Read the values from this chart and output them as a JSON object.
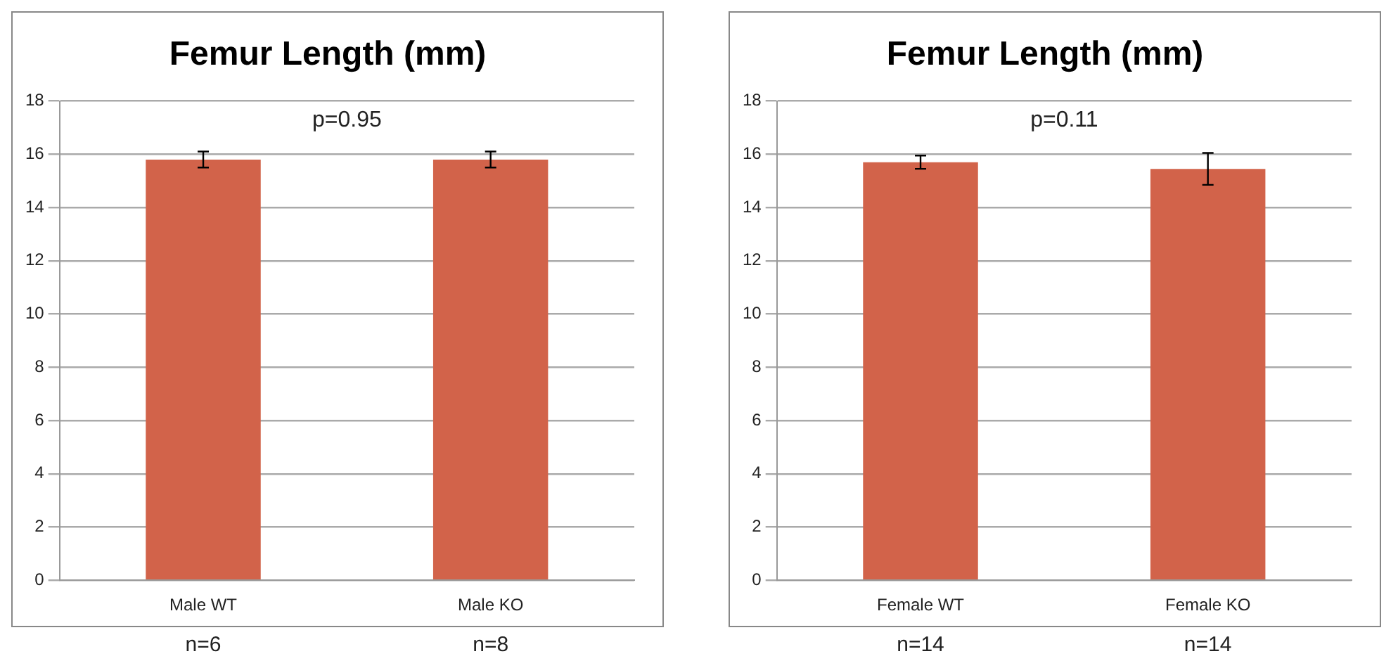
{
  "chart_data": [
    {
      "type": "bar",
      "title": "Femur Length (mm)",
      "categories": [
        "Male WT",
        "Male KO"
      ],
      "values": [
        15.8,
        15.8
      ],
      "errors": [
        0.3,
        0.3
      ],
      "color": "#d2634a",
      "ylim": [
        0,
        18
      ],
      "yticks": [
        0,
        2,
        4,
        6,
        8,
        10,
        12,
        14,
        16,
        18
      ],
      "grid": "y",
      "legend": false,
      "annotations": [
        "p=0.95",
        "n=6",
        "n=8"
      ]
    },
    {
      "type": "bar",
      "title": "Femur Length (mm)",
      "categories": [
        "Female WT",
        "Female KO"
      ],
      "values": [
        15.7,
        15.45
      ],
      "errors": [
        0.25,
        0.6
      ],
      "color": "#d2634a",
      "ylim": [
        0,
        18
      ],
      "yticks": [
        0,
        2,
        4,
        6,
        8,
        10,
        12,
        14,
        16,
        18
      ],
      "grid": "y",
      "legend": false,
      "annotations": [
        "p=0.11",
        "n=14",
        "n=14"
      ]
    }
  ]
}
